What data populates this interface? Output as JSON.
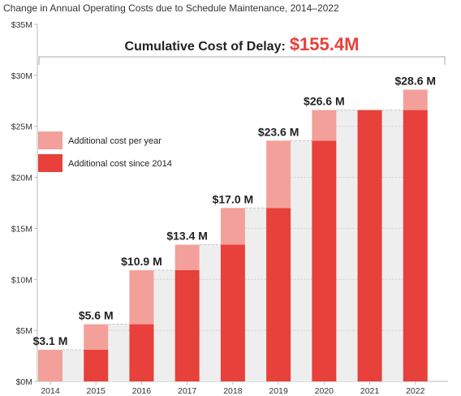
{
  "chart_data": {
    "type": "bar",
    "title": "Change in Annual Operating Costs due to Schedule Maintenance, 2014–2022",
    "categories": [
      "2014",
      "2015",
      "2016",
      "2017",
      "2018",
      "2019",
      "2020",
      "2021",
      "2022"
    ],
    "value_labels": [
      "$3.1 M",
      "$5.6 M",
      "$10.9 M",
      "$13.4 M",
      "$17.0 M",
      "$23.6 M",
      "$26.6 M",
      "",
      "$28.6 M"
    ],
    "series": [
      {
        "name": "Additional cost since 2014",
        "values": [
          0,
          3.1,
          5.6,
          10.9,
          13.4,
          17.0,
          23.6,
          26.6,
          26.6
        ]
      },
      {
        "name": "Additional cost per year",
        "values": [
          3.1,
          2.5,
          5.3,
          2.5,
          3.6,
          6.6,
          3.0,
          0,
          2.0
        ]
      }
    ],
    "totals": [
      3.1,
      5.6,
      10.9,
      13.4,
      17.0,
      23.6,
      26.6,
      26.6,
      28.6
    ],
    "ylim": [
      0,
      35
    ],
    "y_ticks": [
      "$0M",
      "$5M",
      "$10M",
      "$15M",
      "$20M",
      "$25M",
      "$30M",
      "$35M"
    ],
    "y_tick_values": [
      0,
      5,
      10,
      15,
      20,
      25,
      30,
      35
    ],
    "legend": {
      "placement": "upper-left",
      "items": [
        {
          "label": "Additional cost per year",
          "color": "#f4a09a"
        },
        {
          "label": "Additional cost since 2014",
          "color": "#e8403a"
        }
      ]
    },
    "annotation": {
      "label": "Cumulative Cost of Delay:",
      "value": "$155.4M",
      "value_color": "#e8403a"
    },
    "colors": {
      "since_2014": "#e8403a",
      "per_year": "#f4a09a",
      "gap_fill": "#eeeeee",
      "axis": "#bbbbbb"
    },
    "grid": false
  }
}
